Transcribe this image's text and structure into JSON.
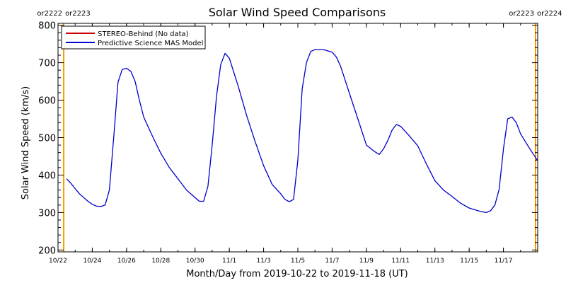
{
  "chart_data": {
    "type": "line",
    "title": "Solar Wind Speed Comparisons",
    "xlabel": "Month/Day from 2019-10-22 to 2019-11-18 (UT)",
    "ylabel": "Solar Wind Speed (km/s)",
    "xlim": [
      "2019-10-22T00:00",
      "2019-11-19T00:00"
    ],
    "ylim": [
      195,
      805
    ],
    "y_ticks": [
      200,
      300,
      400,
      500,
      600,
      700,
      800
    ],
    "x_ticks": [
      {
        "date": "2019-10-22",
        "label": "10/22"
      },
      {
        "date": "2019-10-24",
        "label": "10/24"
      },
      {
        "date": "2019-10-26",
        "label": "10/26"
      },
      {
        "date": "2019-10-28",
        "label": "10/28"
      },
      {
        "date": "2019-10-30",
        "label": "10/30"
      },
      {
        "date": "2019-11-01",
        "label": "11/1"
      },
      {
        "date": "2019-11-03",
        "label": "11/3"
      },
      {
        "date": "2019-11-05",
        "label": "11/5"
      },
      {
        "date": "2019-11-07",
        "label": "11/7"
      },
      {
        "date": "2019-11-09",
        "label": "11/9"
      },
      {
        "date": "2019-11-11",
        "label": "11/11"
      },
      {
        "date": "2019-11-13",
        "label": "11/13"
      },
      {
        "date": "2019-11-15",
        "label": "11/15"
      },
      {
        "date": "2019-11-17",
        "label": "11/17"
      }
    ],
    "legend_position": "top-left",
    "grid": false,
    "series": [
      {
        "name": "STEREO-Behind (No data)",
        "color": "#cc0000",
        "x": [],
        "y": []
      },
      {
        "name": "Predictive Science MAS Model",
        "color": "#0000cc",
        "x": [
          "2019-10-22T12:00",
          "2019-10-22T18:00",
          "2019-10-23T00:00",
          "2019-10-23T06:00",
          "2019-10-23T12:00",
          "2019-10-23T18:00",
          "2019-10-24T00:00",
          "2019-10-24T06:00",
          "2019-10-24T12:00",
          "2019-10-24T18:00",
          "2019-10-25T00:00",
          "2019-10-25T06:00",
          "2019-10-25T12:00",
          "2019-10-25T18:00",
          "2019-10-26T00:00",
          "2019-10-26T06:00",
          "2019-10-26T12:00",
          "2019-10-26T18:00",
          "2019-10-27T00:00",
          "2019-10-27T12:00",
          "2019-10-28T00:00",
          "2019-10-28T12:00",
          "2019-10-29T00:00",
          "2019-10-29T12:00",
          "2019-10-30T00:00",
          "2019-10-30T06:00",
          "2019-10-30T12:00",
          "2019-10-30T18:00",
          "2019-10-31T00:00",
          "2019-10-31T06:00",
          "2019-10-31T12:00",
          "2019-10-31T18:00",
          "2019-11-01T00:00",
          "2019-11-01T12:00",
          "2019-11-02T00:00",
          "2019-11-02T12:00",
          "2019-11-03T00:00",
          "2019-11-03T12:00",
          "2019-11-04T00:00",
          "2019-11-04T06:00",
          "2019-11-04T12:00",
          "2019-11-04T18:00",
          "2019-11-05T00:00",
          "2019-11-05T06:00",
          "2019-11-05T12:00",
          "2019-11-05T18:00",
          "2019-11-06T00:00",
          "2019-11-06T12:00",
          "2019-11-07T00:00",
          "2019-11-07T06:00",
          "2019-11-07T12:00",
          "2019-11-08T00:00",
          "2019-11-08T12:00",
          "2019-11-09T00:00",
          "2019-11-09T12:00",
          "2019-11-09T18:00",
          "2019-11-10T00:00",
          "2019-11-10T06:00",
          "2019-11-10T12:00",
          "2019-11-10T18:00",
          "2019-11-11T00:00",
          "2019-11-11T12:00",
          "2019-11-12T00:00",
          "2019-11-12T12:00",
          "2019-11-13T00:00",
          "2019-11-13T12:00",
          "2019-11-14T00:00",
          "2019-11-14T12:00",
          "2019-11-15T00:00",
          "2019-11-15T12:00",
          "2019-11-15T18:00",
          "2019-11-16T00:00",
          "2019-11-16T06:00",
          "2019-11-16T12:00",
          "2019-11-16T18:00",
          "2019-11-17T00:00",
          "2019-11-17T06:00",
          "2019-11-17T12:00",
          "2019-11-17T18:00",
          "2019-11-18T00:00",
          "2019-11-18T12:00",
          "2019-11-19T00:00"
        ],
        "y": [
          390,
          378,
          364,
          350,
          340,
          330,
          322,
          317,
          316,
          320,
          360,
          500,
          648,
          682,
          685,
          677,
          650,
          600,
          555,
          505,
          458,
          420,
          390,
          360,
          340,
          330,
          330,
          370,
          480,
          610,
          695,
          725,
          712,
          640,
          560,
          490,
          425,
          375,
          350,
          335,
          329,
          335,
          440,
          630,
          700,
          730,
          735,
          735,
          728,
          715,
          690,
          620,
          550,
          480,
          462,
          455,
          470,
          492,
          520,
          535,
          530,
          505,
          478,
          430,
          385,
          360,
          343,
          325,
          312,
          305,
          302,
          300,
          305,
          320,
          362,
          470,
          550,
          555,
          540,
          510,
          473,
          438
        ]
      }
    ],
    "annotations": [
      {
        "label": "or2222",
        "date": "2019-10-22T08:00",
        "position": "left"
      },
      {
        "label": "or2223",
        "date": "2019-10-22T08:00",
        "position": "right"
      },
      {
        "label": "or2223",
        "date": "2019-11-18T21:00",
        "position": "left"
      },
      {
        "label": "or2224",
        "date": "2019-11-18T21:00",
        "position": "right"
      }
    ],
    "colors": {
      "axis": "#000000",
      "marker_line": "#ff9900",
      "marker_text": "#ff9900",
      "legend_border": "#000000"
    }
  }
}
